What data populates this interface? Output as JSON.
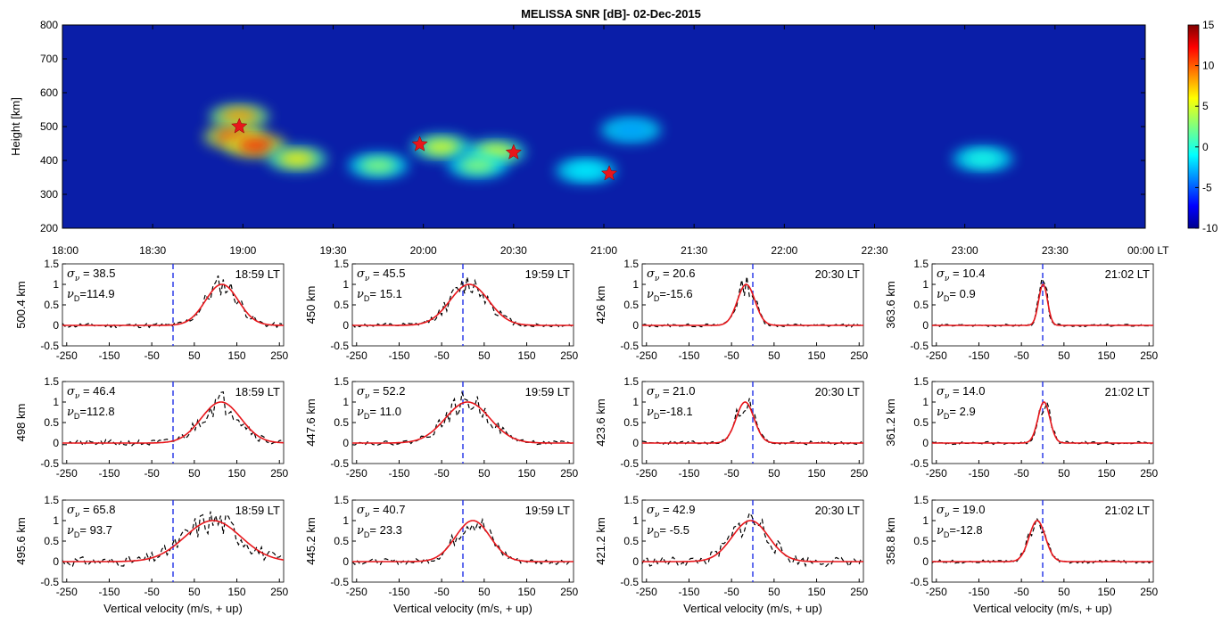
{
  "chart_data": [
    {
      "type": "heatmap",
      "title": "MELISSA SNR [dB]- 02-Dec-2015",
      "ylabel": "Height [km]",
      "ylim": [
        200,
        800
      ],
      "y_ticks": [
        "200",
        "300",
        "400",
        "500",
        "600",
        "700",
        "800"
      ],
      "x_ticks": [
        "18:00",
        "18:30",
        "19:00",
        "19:30",
        "20:00",
        "20:30",
        "21:00",
        "21:30",
        "22:00",
        "22:30",
        "23:00",
        "23:30",
        "00:00 LT"
      ],
      "xlim_hours": [
        18.0,
        24.0
      ],
      "colorbar": {
        "range": [
          -10,
          15
        ],
        "ticks": [
          "15",
          "10",
          "5",
          "0",
          "-5",
          "-10"
        ],
        "colormap": "jet"
      },
      "background_color": "#0a1ea8",
      "echo_blobs": [
        {
          "t_hours": 18.98,
          "height_km": 530,
          "snr_db": 8
        },
        {
          "t_hours": 18.95,
          "height_km": 470,
          "snr_db": 10
        },
        {
          "t_hours": 19.07,
          "height_km": 445,
          "snr_db": 11
        },
        {
          "t_hours": 19.3,
          "height_km": 405,
          "snr_db": 6
        },
        {
          "t_hours": 19.75,
          "height_km": 385,
          "snr_db": 3
        },
        {
          "t_hours": 20.1,
          "height_km": 440,
          "snr_db": 5
        },
        {
          "t_hours": 20.4,
          "height_km": 425,
          "snr_db": 5
        },
        {
          "t_hours": 20.3,
          "height_km": 385,
          "snr_db": 3
        },
        {
          "t_hours": 20.9,
          "height_km": 370,
          "snr_db": -1
        },
        {
          "t_hours": 21.15,
          "height_km": 490,
          "snr_db": -3
        },
        {
          "t_hours": 23.1,
          "height_km": 405,
          "snr_db": 0
        }
      ],
      "markers": [
        {
          "t_hours": 18.98,
          "height_km": 500.4,
          "color": "#e8161b"
        },
        {
          "t_hours": 19.98,
          "height_km": 447.6,
          "color": "#e8161b"
        },
        {
          "t_hours": 20.5,
          "height_km": 423.6,
          "color": "#e8161b"
        },
        {
          "t_hours": 21.03,
          "height_km": 361.2,
          "color": "#e8161b"
        }
      ]
    },
    {
      "type": "line",
      "xlabel": "Vertical velocity (m/s, + up)",
      "xlim": [
        -260,
        260
      ],
      "ylim": [
        -0.5,
        1.5
      ],
      "x_ticks": [
        "-250",
        "-150",
        "-50",
        "50",
        "150",
        "250"
      ],
      "y_ticks": [
        "-0.5",
        "0",
        "0.5",
        "1",
        "1.5"
      ],
      "series_styles": {
        "measured": "#000000",
        "gaussian_fit": "#e8161b",
        "zero_velocity": "#1f2fe6"
      },
      "panels": [
        {
          "height_label": "500.4 km",
          "time": "18:59 LT",
          "sigma": "= 38.5",
          "vd": "=114.9",
          "sigma_v": 38.5,
          "vd_v": 114.9,
          "noise": 0.06,
          "seed": 11
        },
        {
          "height_label": "450 km",
          "time": "19:59 LT",
          "sigma": "= 45.5",
          "vd": "= 15.1",
          "sigma_v": 45.5,
          "vd_v": 15.1,
          "noise": 0.05,
          "seed": 12
        },
        {
          "height_label": "426 km",
          "time": "20:30 LT",
          "sigma": "= 20.6",
          "vd": "=-15.6",
          "sigma_v": 20.6,
          "vd_v": -15.6,
          "noise": 0.04,
          "seed": 13
        },
        {
          "height_label": "363.6 km",
          "time": "21:02 LT",
          "sigma": "= 10.4",
          "vd": "=  0.9",
          "sigma_v": 10.4,
          "vd_v": 0.9,
          "noise": 0.03,
          "seed": 14
        },
        {
          "height_label": "498 km",
          "time": "18:59 LT",
          "sigma": "= 46.4",
          "vd": "=112.8",
          "sigma_v": 46.4,
          "vd_v": 112.8,
          "noise": 0.08,
          "seed": 21
        },
        {
          "height_label": "447.6 km",
          "time": "19:59 LT",
          "sigma": "= 52.2",
          "vd": "= 11.0",
          "sigma_v": 52.2,
          "vd_v": 11.0,
          "noise": 0.05,
          "seed": 22
        },
        {
          "height_label": "423.6 km",
          "time": "20:30 LT",
          "sigma": "= 21.0",
          "vd": "=-18.1",
          "sigma_v": 21.0,
          "vd_v": -18.1,
          "noise": 0.05,
          "seed": 23
        },
        {
          "height_label": "361.2 km",
          "time": "21:02 LT",
          "sigma": "= 14.0",
          "vd": "=  2.9",
          "sigma_v": 14.0,
          "vd_v": 2.9,
          "noise": 0.04,
          "seed": 24
        },
        {
          "height_label": "495.6 km",
          "time": "18:59 LT",
          "sigma": "= 65.8",
          "vd": "= 93.7",
          "sigma_v": 65.8,
          "vd_v": 93.7,
          "noise": 0.12,
          "seed": 31
        },
        {
          "height_label": "445.2 km",
          "time": "19:59 LT",
          "sigma": "= 40.7",
          "vd": "= 23.3",
          "sigma_v": 40.7,
          "vd_v": 23.3,
          "noise": 0.07,
          "seed": 32
        },
        {
          "height_label": "421.2 km",
          "time": "20:30 LT",
          "sigma": "= 42.9",
          "vd": "= -5.5",
          "sigma_v": 42.9,
          "vd_v": -5.5,
          "noise": 0.12,
          "seed": 33
        },
        {
          "height_label": "358.8 km",
          "time": "21:02 LT",
          "sigma": "= 19.0",
          "vd": "=-12.8",
          "sigma_v": 19.0,
          "vd_v": -12.8,
          "noise": 0.04,
          "seed": 34
        }
      ]
    }
  ]
}
